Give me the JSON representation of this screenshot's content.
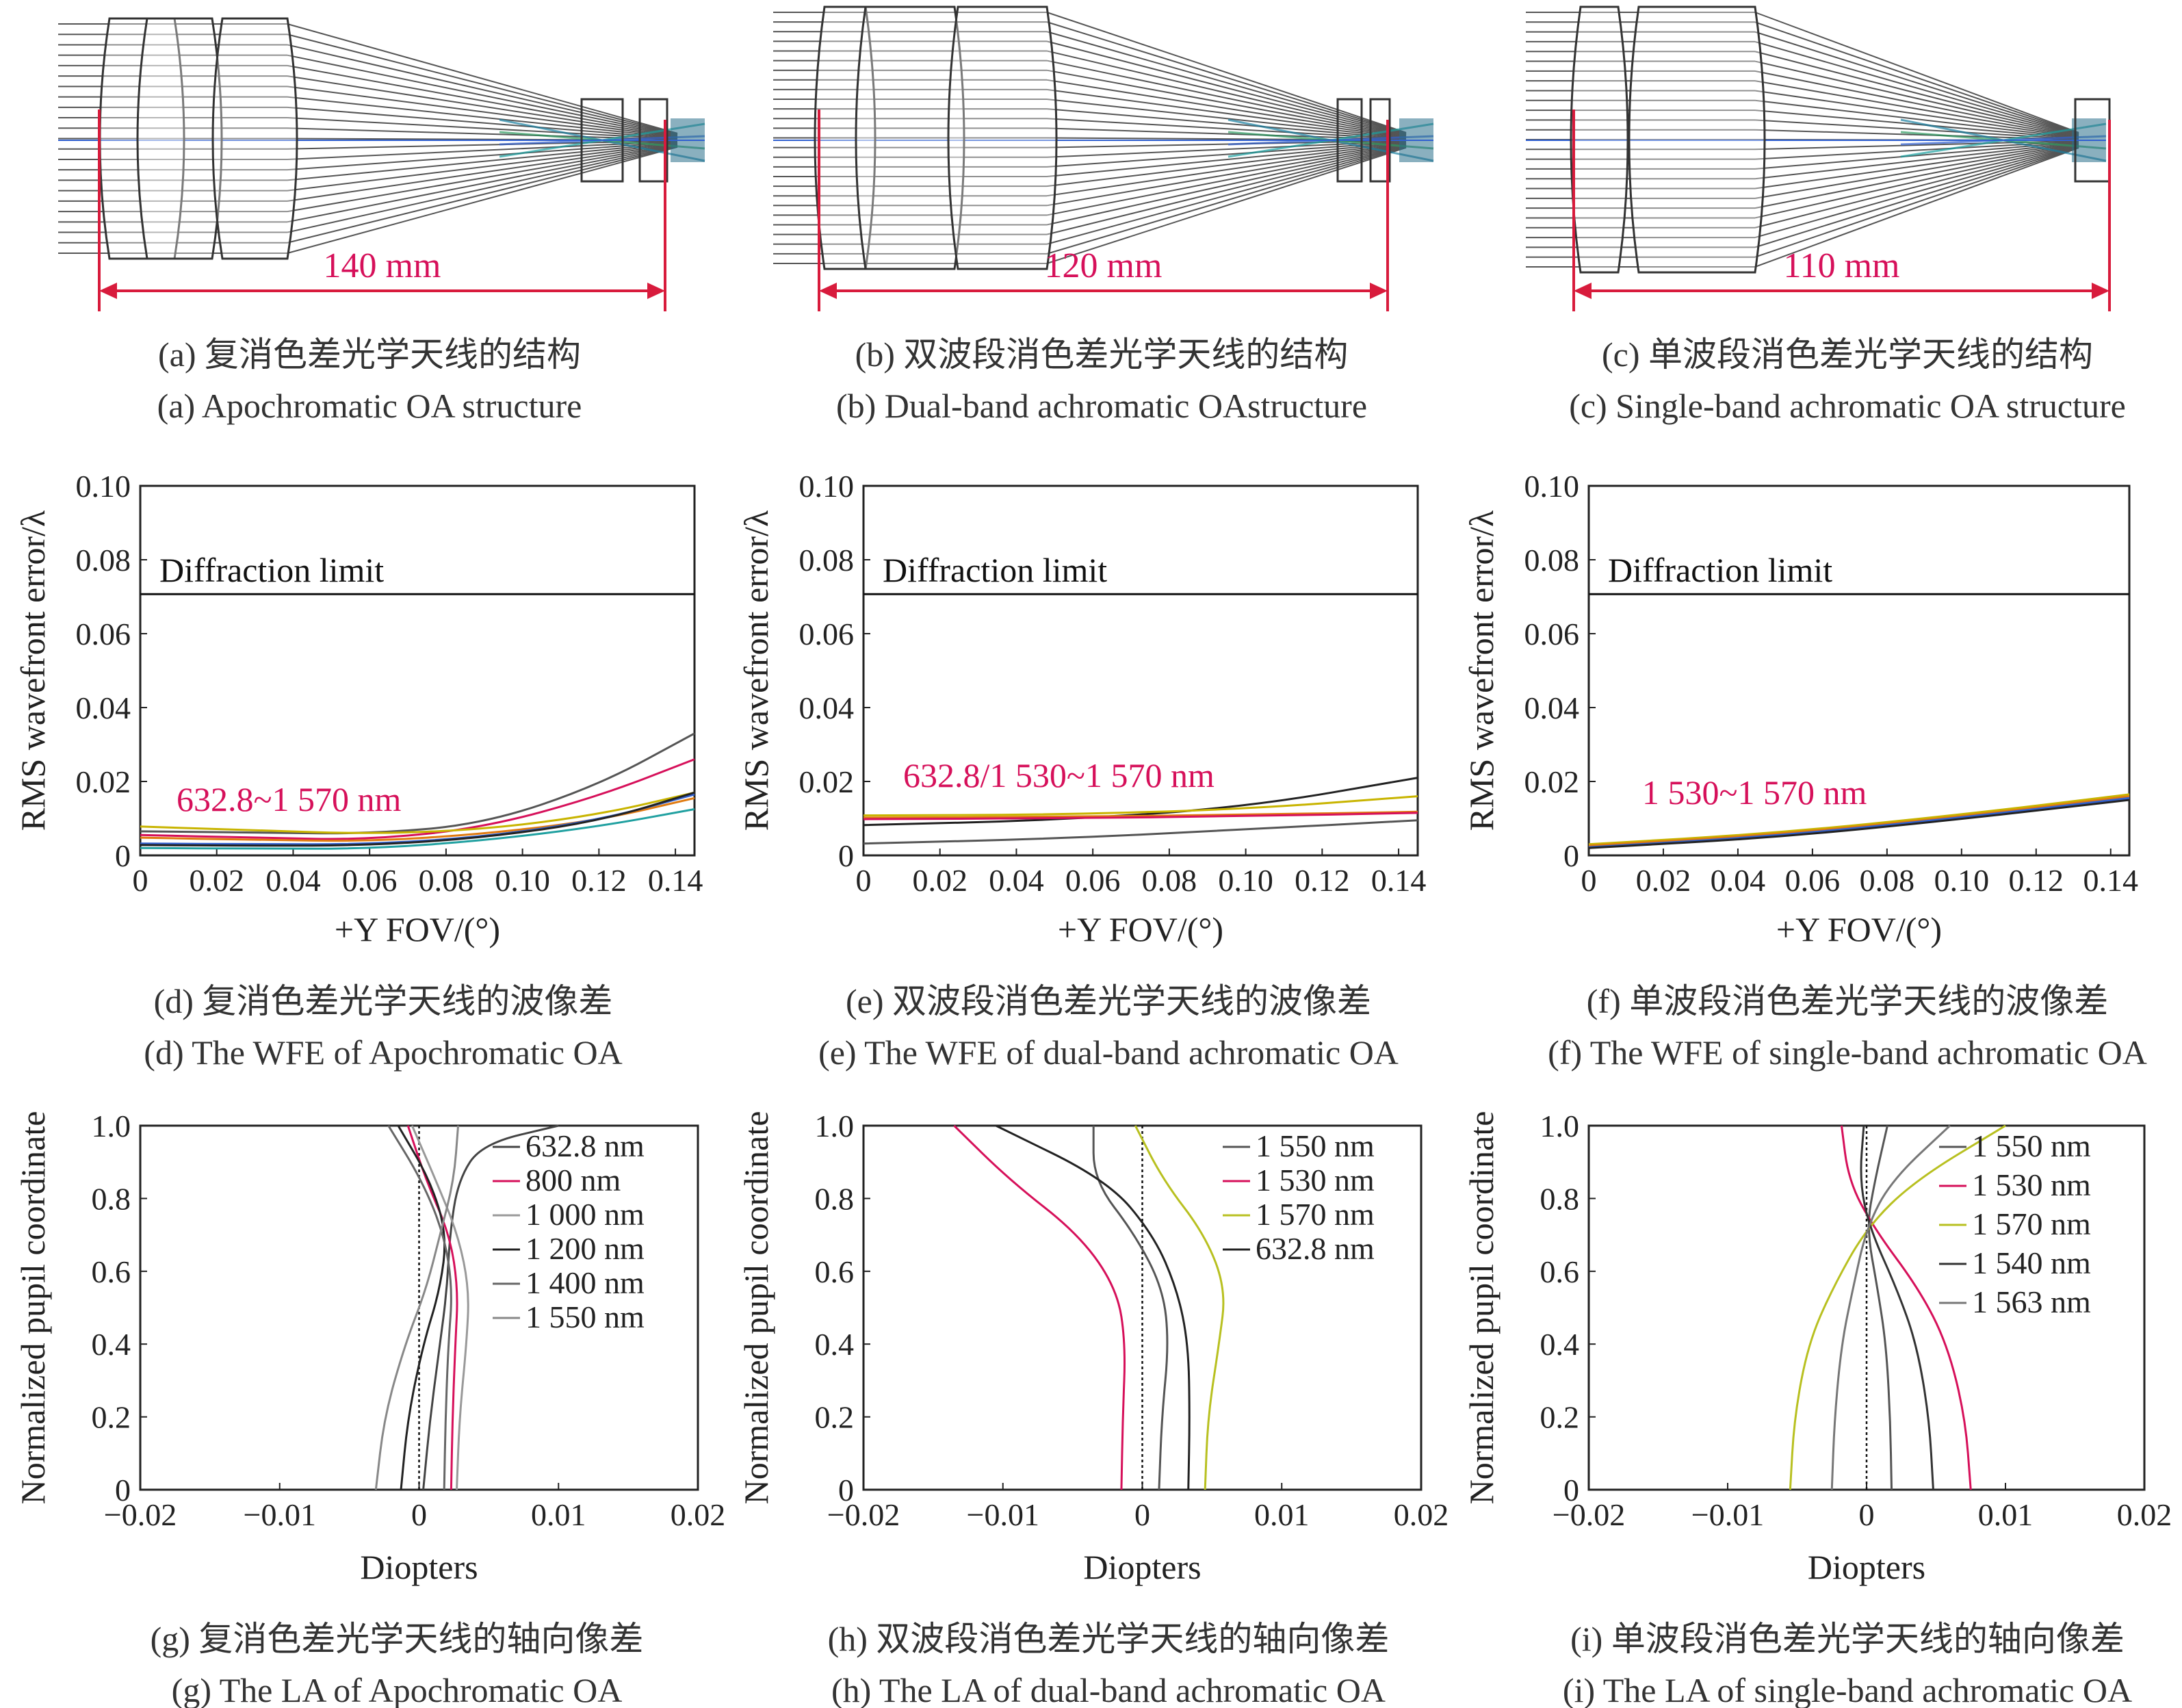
{
  "colors": {
    "red_annotation": "#d6105a",
    "dimension_line": "#d81b3c",
    "lens_outline": "#333333",
    "ray": "#555555"
  },
  "structures": [
    {
      "id": "a",
      "dimension": "140 mm",
      "caption_cn": "(a) 复消色差光学天线的结构",
      "caption_en": "(a) Apochromatic OA structure"
    },
    {
      "id": "b",
      "dimension": "120 mm",
      "caption_cn": "(b) 双波段消色差光学天线的结构",
      "caption_en": "(b) Dual-band achromatic OAstructure"
    },
    {
      "id": "c",
      "dimension": "110 mm",
      "caption_cn": "(c) 单波段消色差光学天线的结构",
      "caption_en": "(c) Single-band achromatic OA structure"
    }
  ],
  "chart_data": [
    {
      "id": "d",
      "type": "line",
      "caption_cn": "(d) 复消色差光学天线的波像差",
      "caption_en": "(d) The WFE of Apochromatic OA",
      "xlabel": "+Y FOV/(°)",
      "ylabel": "RMS wavefront error/λ",
      "xlim": [
        0,
        0.145
      ],
      "ylim": [
        0,
        0.1
      ],
      "xticks": [
        "0",
        "0.02",
        "0.04",
        "0.06",
        "0.08",
        "0.10",
        "0.12",
        "0.14"
      ],
      "yticks": [
        "0",
        "0.02",
        "0.04",
        "0.06",
        "0.08",
        "0.10"
      ],
      "reference_line": {
        "label": "Diffraction limit",
        "y": 0.0707
      },
      "annotation": "632.8~1 570 nm",
      "series": [
        {
          "color": "#555555",
          "x": [
            0,
            0.03,
            0.06,
            0.09,
            0.12,
            0.145
          ],
          "y": [
            0.0065,
            0.0062,
            0.0058,
            0.0085,
            0.019,
            0.033
          ]
        },
        {
          "color": "#d6105a",
          "x": [
            0,
            0.03,
            0.06,
            0.09,
            0.12,
            0.145
          ],
          "y": [
            0.0055,
            0.0048,
            0.0042,
            0.0075,
            0.016,
            0.026
          ]
        },
        {
          "color": "#c8b400",
          "x": [
            0,
            0.03,
            0.06,
            0.09,
            0.12,
            0.145
          ],
          "y": [
            0.0078,
            0.0068,
            0.0058,
            0.007,
            0.011,
            0.017
          ]
        },
        {
          "color": "#e07a10",
          "x": [
            0,
            0.03,
            0.06,
            0.09,
            0.12,
            0.145
          ],
          "y": [
            0.0048,
            0.0042,
            0.0038,
            0.0058,
            0.0095,
            0.0155
          ]
        },
        {
          "color": "#3060d0",
          "x": [
            0,
            0.03,
            0.06,
            0.09,
            0.12,
            0.145
          ],
          "y": [
            0.0032,
            0.003,
            0.003,
            0.005,
            0.0095,
            0.0165
          ]
        },
        {
          "color": "#20a0a0",
          "x": [
            0,
            0.03,
            0.06,
            0.09,
            0.12,
            0.145
          ],
          "y": [
            0.002,
            0.0018,
            0.0018,
            0.004,
            0.0078,
            0.0125
          ]
        },
        {
          "color": "#222222",
          "x": [
            0,
            0.03,
            0.06,
            0.09,
            0.12,
            0.145
          ],
          "y": [
            0.0028,
            0.0026,
            0.0027,
            0.0048,
            0.0092,
            0.017
          ]
        }
      ]
    },
    {
      "id": "e",
      "type": "line",
      "caption_cn": "(e) 双波段消色差光学天线的波像差",
      "caption_en": "(e) The WFE of dual-band achromatic OA",
      "xlabel": "+Y FOV/(°)",
      "ylabel": "RMS wavefront error/λ",
      "xlim": [
        0,
        0.145
      ],
      "ylim": [
        0,
        0.1
      ],
      "xticks": [
        "0",
        "0.02",
        "0.04",
        "0.06",
        "0.08",
        "0.10",
        "0.12",
        "0.14"
      ],
      "yticks": [
        "0",
        "0.02",
        "0.04",
        "0.06",
        "0.08",
        "0.10"
      ],
      "reference_line": {
        "label": "Diffraction limit",
        "y": 0.0707
      },
      "annotation": "632.8/1 530~1 570 nm",
      "series": [
        {
          "color": "#222222",
          "x": [
            0,
            0.05,
            0.1,
            0.145
          ],
          "y": [
            0.0082,
            0.0095,
            0.013,
            0.021
          ]
        },
        {
          "color": "#c8b400",
          "x": [
            0,
            0.05,
            0.1,
            0.145
          ],
          "y": [
            0.0108,
            0.011,
            0.0125,
            0.016
          ]
        },
        {
          "color": "#e07a10",
          "x": [
            0,
            0.05,
            0.1,
            0.145
          ],
          "y": [
            0.0102,
            0.0104,
            0.011,
            0.0118
          ]
        },
        {
          "color": "#d6105a",
          "x": [
            0,
            0.05,
            0.1,
            0.145
          ],
          "y": [
            0.0098,
            0.01,
            0.0106,
            0.0115
          ]
        },
        {
          "color": "#555555",
          "x": [
            0,
            0.05,
            0.1,
            0.145
          ],
          "y": [
            0.0032,
            0.0045,
            0.007,
            0.0095
          ]
        }
      ]
    },
    {
      "id": "f",
      "type": "line",
      "caption_cn": "(f) 单波段消色差光学天线的波像差",
      "caption_en": "(f) The WFE of single-band achromatic OA",
      "xlabel": "+Y FOV/(°)",
      "ylabel": "RMS wavefront error/λ",
      "xlim": [
        0,
        0.145
      ],
      "ylim": [
        0,
        0.1
      ],
      "xticks": [
        "0",
        "0.02",
        "0.04",
        "0.06",
        "0.08",
        "0.10",
        "0.12",
        "0.14"
      ],
      "yticks": [
        "0",
        "0.02",
        "0.04",
        "0.06",
        "0.08",
        "0.10"
      ],
      "reference_line": {
        "label": "Diffraction limit",
        "y": 0.0707
      },
      "annotation": "1 530~1 570 nm",
      "series": [
        {
          "color": "#c8b400",
          "x": [
            0,
            0.05,
            0.1,
            0.145
          ],
          "y": [
            0.003,
            0.006,
            0.011,
            0.0165
          ]
        },
        {
          "color": "#e07a10",
          "x": [
            0,
            0.05,
            0.1,
            0.145
          ],
          "y": [
            0.0026,
            0.0056,
            0.0105,
            0.016
          ]
        },
        {
          "color": "#3060d0",
          "x": [
            0,
            0.05,
            0.1,
            0.145
          ],
          "y": [
            0.0022,
            0.0052,
            0.0102,
            0.0155
          ]
        },
        {
          "color": "#222222",
          "x": [
            0,
            0.05,
            0.1,
            0.145
          ],
          "y": [
            0.002,
            0.0048,
            0.0098,
            0.015
          ]
        }
      ]
    },
    {
      "id": "g",
      "type": "line",
      "caption_cn": "(g) 复消色差光学天线的轴向像差",
      "caption_en": "(g) The LA of Apochromatic OA",
      "xlabel": "Diopters",
      "ylabel": "Normalized pupil coordinate",
      "xlim": [
        -0.02,
        0.02
      ],
      "ylim": [
        0,
        1
      ],
      "xticks": [
        "−0.02",
        "−0.01",
        "0",
        "0.01",
        "0.02"
      ],
      "yticks": [
        "0",
        "0.2",
        "0.4",
        "0.6",
        "0.8",
        "1.0"
      ],
      "legend": {
        "position": "top-right"
      },
      "series": [
        {
          "name": "632.8 nm",
          "color": "#444444",
          "x": [
            0.0003,
            0.0008,
            0.0015,
            0.002,
            0.0022,
            0.0028,
            0.0045,
            0.01
          ],
          "y": [
            0,
            0.2,
            0.4,
            0.55,
            0.7,
            0.85,
            0.95,
            1.0
          ]
        },
        {
          "name": "800 nm",
          "color": "#d6105a",
          "x": [
            0.0023,
            0.0024,
            0.0026,
            0.0028,
            0.0022,
            0.0005,
            -0.0008
          ],
          "y": [
            0,
            0.2,
            0.4,
            0.55,
            0.7,
            0.85,
            1.0
          ]
        },
        {
          "name": "1 000 nm",
          "color": "#999999",
          "x": [
            0.0027,
            0.0029,
            0.0034,
            0.0036,
            0.0028,
            0.0012,
            -0.0005
          ],
          "y": [
            0,
            0.2,
            0.4,
            0.55,
            0.7,
            0.85,
            1.0
          ]
        },
        {
          "name": "1 200 nm",
          "color": "#222222",
          "x": [
            -0.0013,
            -0.0008,
            0.0003,
            0.0015,
            0.002,
            0.0008,
            -0.0015
          ],
          "y": [
            0,
            0.2,
            0.4,
            0.55,
            0.7,
            0.85,
            1.0
          ]
        },
        {
          "name": "1 400 nm",
          "color": "#666666",
          "x": [
            0.0018,
            0.0019,
            0.0021,
            0.0024,
            0.0018,
            0.0002,
            -0.0022
          ],
          "y": [
            0,
            0.2,
            0.4,
            0.55,
            0.7,
            0.85,
            1.0
          ]
        },
        {
          "name": "1 550 nm",
          "color": "#888888",
          "x": [
            -0.0031,
            -0.0025,
            -0.001,
            0.0005,
            0.0015,
            0.0025,
            0.0028
          ],
          "y": [
            0,
            0.2,
            0.4,
            0.55,
            0.7,
            0.85,
            1.0
          ]
        }
      ]
    },
    {
      "id": "h",
      "type": "line",
      "caption_cn": "(h) 双波段消色差光学天线的轴向像差",
      "caption_en": "(h) The LA of dual-band achromatic OA",
      "xlabel": "Diopters",
      "ylabel": "Normalized pupil coordinate",
      "xlim": [
        -0.02,
        0.02
      ],
      "ylim": [
        0,
        1
      ],
      "xticks": [
        "−0.02",
        "−0.01",
        "0",
        "0.01",
        "0.02"
      ],
      "yticks": [
        "0",
        "0.2",
        "0.4",
        "0.6",
        "0.8",
        "1.0"
      ],
      "legend": {
        "position": "top-right"
      },
      "series": [
        {
          "name": "1 550 nm",
          "color": "#555555",
          "x": [
            0.0012,
            0.0014,
            0.0019,
            0.0015,
            -0.0005,
            -0.0035,
            -0.0035
          ],
          "y": [
            0,
            0.2,
            0.4,
            0.55,
            0.7,
            0.85,
            1.0
          ]
        },
        {
          "name": "1 530 nm",
          "color": "#d6105a",
          "x": [
            -0.0015,
            -0.0014,
            -0.0012,
            -0.0018,
            -0.0045,
            -0.0095,
            -0.0135
          ],
          "y": [
            0,
            0.2,
            0.4,
            0.55,
            0.7,
            0.85,
            1.0
          ]
        },
        {
          "name": "1 570 nm",
          "color": "#b8c020",
          "x": [
            0.0045,
            0.0047,
            0.0055,
            0.006,
            0.0045,
            0.0015,
            -0.0005
          ],
          "y": [
            0,
            0.2,
            0.4,
            0.55,
            0.7,
            0.85,
            1.0
          ]
        },
        {
          "name": "632.8 nm",
          "color": "#222222",
          "x": [
            0.0033,
            0.0034,
            0.0033,
            0.0025,
            0.0008,
            -0.0025,
            -0.0105
          ],
          "y": [
            0,
            0.2,
            0.4,
            0.55,
            0.7,
            0.85,
            1.0
          ]
        }
      ]
    },
    {
      "id": "i",
      "type": "line",
      "caption_cn": "(i) 单波段消色差光学天线的轴向像差",
      "caption_en": "(i) The LA of single-band achromatic OA",
      "xlabel": "Diopters",
      "ylabel": "Normalized pupil coordinate",
      "xlim": [
        -0.02,
        0.02
      ],
      "ylim": [
        0,
        1
      ],
      "xticks": [
        "−0.02",
        "−0.01",
        "0",
        "0.01",
        "0.02"
      ],
      "yticks": [
        "0",
        "0.2",
        "0.4",
        "0.6",
        "0.8",
        "1.0"
      ],
      "legend": {
        "position": "top-right"
      },
      "series": [
        {
          "name": "1 550 nm",
          "color": "#555555",
          "x": [
            0.0018,
            0.0017,
            0.0014,
            0.0008,
            0.0,
            0.0006,
            0.0015
          ],
          "y": [
            0,
            0.2,
            0.4,
            0.55,
            0.72,
            0.85,
            1.0
          ]
        },
        {
          "name": "1 530 nm",
          "color": "#d6105a",
          "x": [
            0.0075,
            0.0071,
            0.0058,
            0.0038,
            0.0005,
            -0.0013,
            -0.0018
          ],
          "y": [
            0,
            0.2,
            0.4,
            0.55,
            0.72,
            0.85,
            1.0
          ]
        },
        {
          "name": "1 570 nm",
          "color": "#b8c020",
          "x": [
            -0.0055,
            -0.0052,
            -0.0042,
            -0.0025,
            0.0,
            0.0035,
            0.01
          ],
          "y": [
            0,
            0.2,
            0.4,
            0.55,
            0.72,
            0.85,
            1.0
          ]
        },
        {
          "name": "1 540 nm",
          "color": "#333333",
          "x": [
            0.0048,
            0.0045,
            0.0036,
            0.0022,
            0.0002,
            -0.0005,
            -0.0002
          ],
          "y": [
            0,
            0.2,
            0.4,
            0.55,
            0.72,
            0.85,
            1.0
          ]
        },
        {
          "name": "1 563 nm",
          "color": "#777777",
          "x": [
            -0.0025,
            -0.0023,
            -0.0018,
            -0.001,
            0.0,
            0.0018,
            0.006
          ],
          "y": [
            0,
            0.2,
            0.4,
            0.55,
            0.72,
            0.85,
            1.0
          ]
        }
      ]
    }
  ]
}
